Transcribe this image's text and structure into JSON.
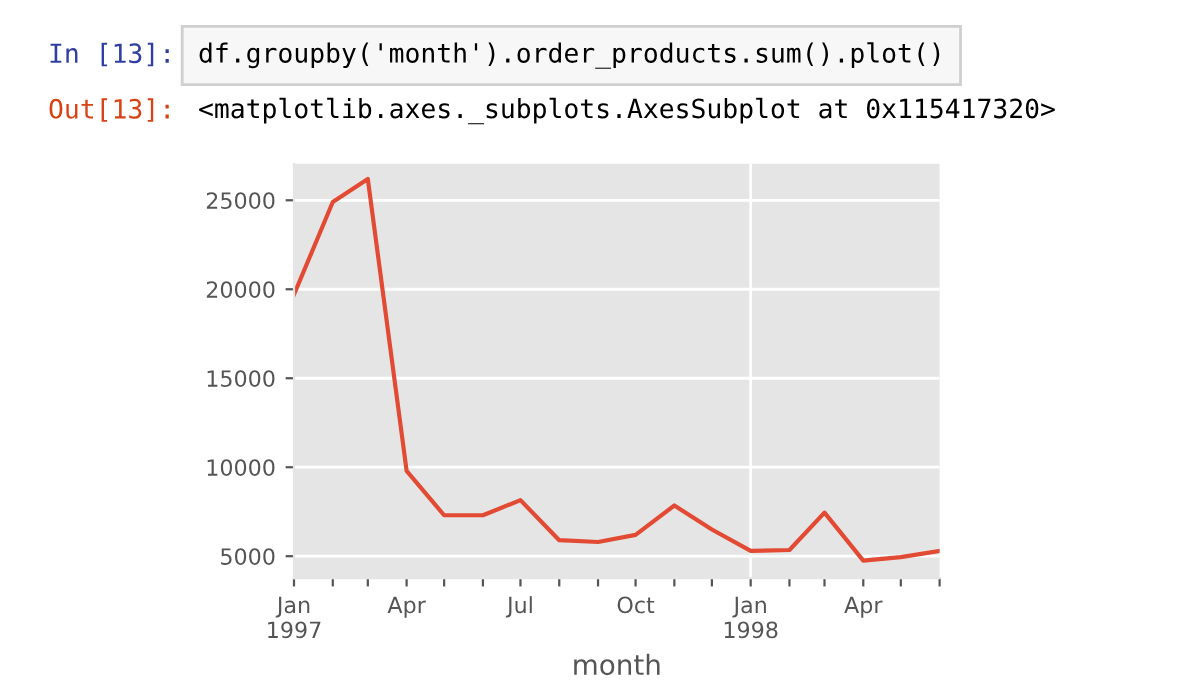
{
  "chart_data": {
    "type": "line",
    "xlabel": "month",
    "annotations": [
      "In [13]:",
      "df.groupby('month').order_products.sum().plot()",
      "Out[13]:",
      "<matplotlib.axes._subplots.AxesSubplot at 0x115417320>"
    ],
    "x": [
      "1997-01",
      "1997-02",
      "1997-03",
      "1997-04",
      "1997-05",
      "1997-06",
      "1997-07",
      "1997-08",
      "1997-09",
      "1997-10",
      "1997-11",
      "1997-12",
      "1998-01",
      "1998-02",
      "1998-03",
      "1998-04",
      "1998-05",
      "1998-06"
    ],
    "series": [
      {
        "color": "#e24a33",
        "values": [
          19700,
          24900,
          26200,
          9800,
          7300,
          7300,
          8150,
          5900,
          5800,
          6200,
          7850,
          6500,
          5300,
          5350,
          7450,
          4750,
          4950,
          5300
        ]
      }
    ],
    "xlim": [
      "1997-01",
      "1998-06"
    ],
    "ylim": [
      3770,
      27050
    ],
    "xticks": [
      {
        "value": "1997-01",
        "label": "Jan\n1997"
      },
      {
        "value": "1997-02",
        "label": null
      },
      {
        "value": "1997-03",
        "label": null
      },
      {
        "value": "1997-04",
        "label": "Apr"
      },
      {
        "value": "1997-05",
        "label": null
      },
      {
        "value": "1997-06",
        "label": null
      },
      {
        "value": "1997-07",
        "label": "Jul"
      },
      {
        "value": "1997-08",
        "label": null
      },
      {
        "value": "1997-09",
        "label": null
      },
      {
        "value": "1997-10",
        "label": "Oct"
      },
      {
        "value": "1997-11",
        "label": null
      },
      {
        "value": "1997-12",
        "label": null
      },
      {
        "value": "1998-01",
        "label": "Jan\n1998"
      },
      {
        "value": "1998-02",
        "label": null
      },
      {
        "value": "1998-03",
        "label": null
      },
      {
        "value": "1998-04",
        "label": "Apr"
      },
      {
        "value": "1998-05",
        "label": null
      },
      {
        "value": "1998-06",
        "label": null
      }
    ],
    "yticks": [
      5000,
      10000,
      15000,
      20000,
      25000
    ],
    "grid": "y",
    "ref_lines": [
      {
        "axis": "x",
        "value": "1998-01",
        "color": "#ffffff"
      }
    ],
    "line_style": "solid",
    "marker": "none"
  }
}
